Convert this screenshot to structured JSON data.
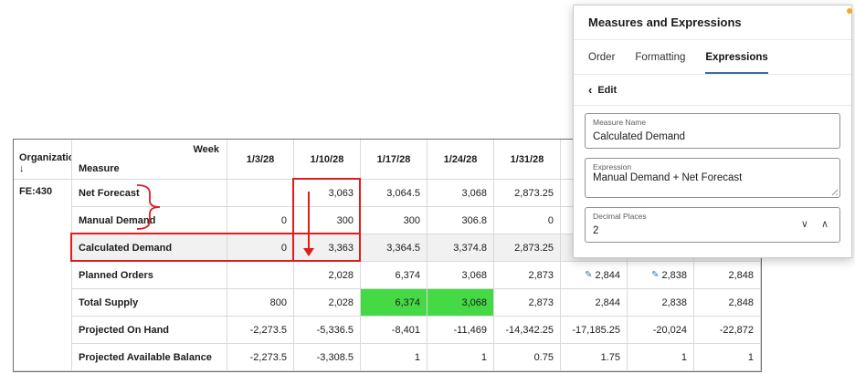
{
  "colors": {
    "annotation_red": "#e11c1c",
    "supply_highlight_green": "#45d945",
    "firm_icon_blue": "#2f74c0",
    "notification_dot_orange": "#f5a623",
    "row_highlight_gray": "#f1f1f1"
  },
  "panel": {
    "title": "Measures and Expressions",
    "tabs": [
      {
        "label": "Order",
        "active": false
      },
      {
        "label": "Formatting",
        "active": false
      },
      {
        "label": "Expressions",
        "active": true
      }
    ],
    "edit_chevron": "‹",
    "edit_label": "Edit",
    "fields": {
      "measure_name": {
        "label": "Measure Name",
        "value": "Calculated Demand"
      },
      "expression": {
        "label": "Expression",
        "value": "Manual Demand + Net Forecast"
      },
      "decimal_places": {
        "label": "Decimal Places",
        "value": "2"
      }
    },
    "spinner": {
      "down": "∨",
      "up": "∧"
    }
  },
  "table": {
    "corner": {
      "week_label": "Week",
      "org_label": "Organization",
      "org_arrow": "↓",
      "measure_label": "Measure"
    },
    "org_value": "FE:430",
    "columns": [
      "1/3/28",
      "1/10/28",
      "1/17/28",
      "1/24/28",
      "1/31/28",
      "",
      "",
      ""
    ],
    "rows": [
      {
        "measure": "Net Forecast",
        "values": [
          "",
          "3,063",
          "3,064.5",
          "3,068",
          "2,873.25",
          "",
          "",
          ""
        ]
      },
      {
        "measure": "Manual Demand",
        "values": [
          "0",
          "300",
          "300",
          "306.8",
          "0",
          "",
          "",
          ""
        ]
      },
      {
        "measure": "Calculated Demand",
        "highlight": true,
        "values": [
          "0",
          "3,363",
          "3,364.5",
          "3,374.8",
          "2,873.25",
          "",
          "",
          ""
        ]
      },
      {
        "measure": "Planned Orders",
        "icons": [
          5,
          6
        ],
        "values": [
          "",
          "2,028",
          "6,374",
          "3,068",
          "2,873",
          "2,844",
          "2,838",
          "2,848"
        ]
      },
      {
        "measure": "Total Supply",
        "green": [
          2,
          3
        ],
        "values": [
          "800",
          "2,028",
          "6,374",
          "3,068",
          "2,873",
          "2,844",
          "2,838",
          "2,848"
        ]
      },
      {
        "measure": "Projected On Hand",
        "values": [
          "-2,273.5",
          "-5,336.5",
          "-8,401",
          "-11,469",
          "-14,342.25",
          "-17,185.25",
          "-20,024",
          "-22,872"
        ]
      },
      {
        "measure": "Projected Available Balance",
        "values": [
          "-2,273.5",
          "-3,308.5",
          "1",
          "1",
          "0.75",
          "1.75",
          "1",
          "1"
        ]
      }
    ]
  }
}
